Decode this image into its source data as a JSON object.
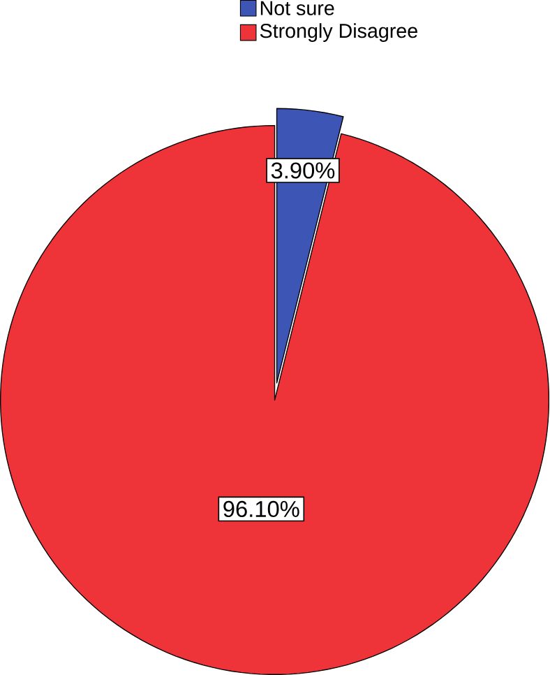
{
  "chart_data": {
    "type": "pie",
    "categories": [
      "Not sure",
      "Strongly Disagree"
    ],
    "values": [
      3.9,
      96.1
    ],
    "colors": [
      "#3d55b4",
      "#ef3439"
    ],
    "value_labels": [
      "3.90%",
      "96.10%"
    ],
    "legend": "top"
  }
}
